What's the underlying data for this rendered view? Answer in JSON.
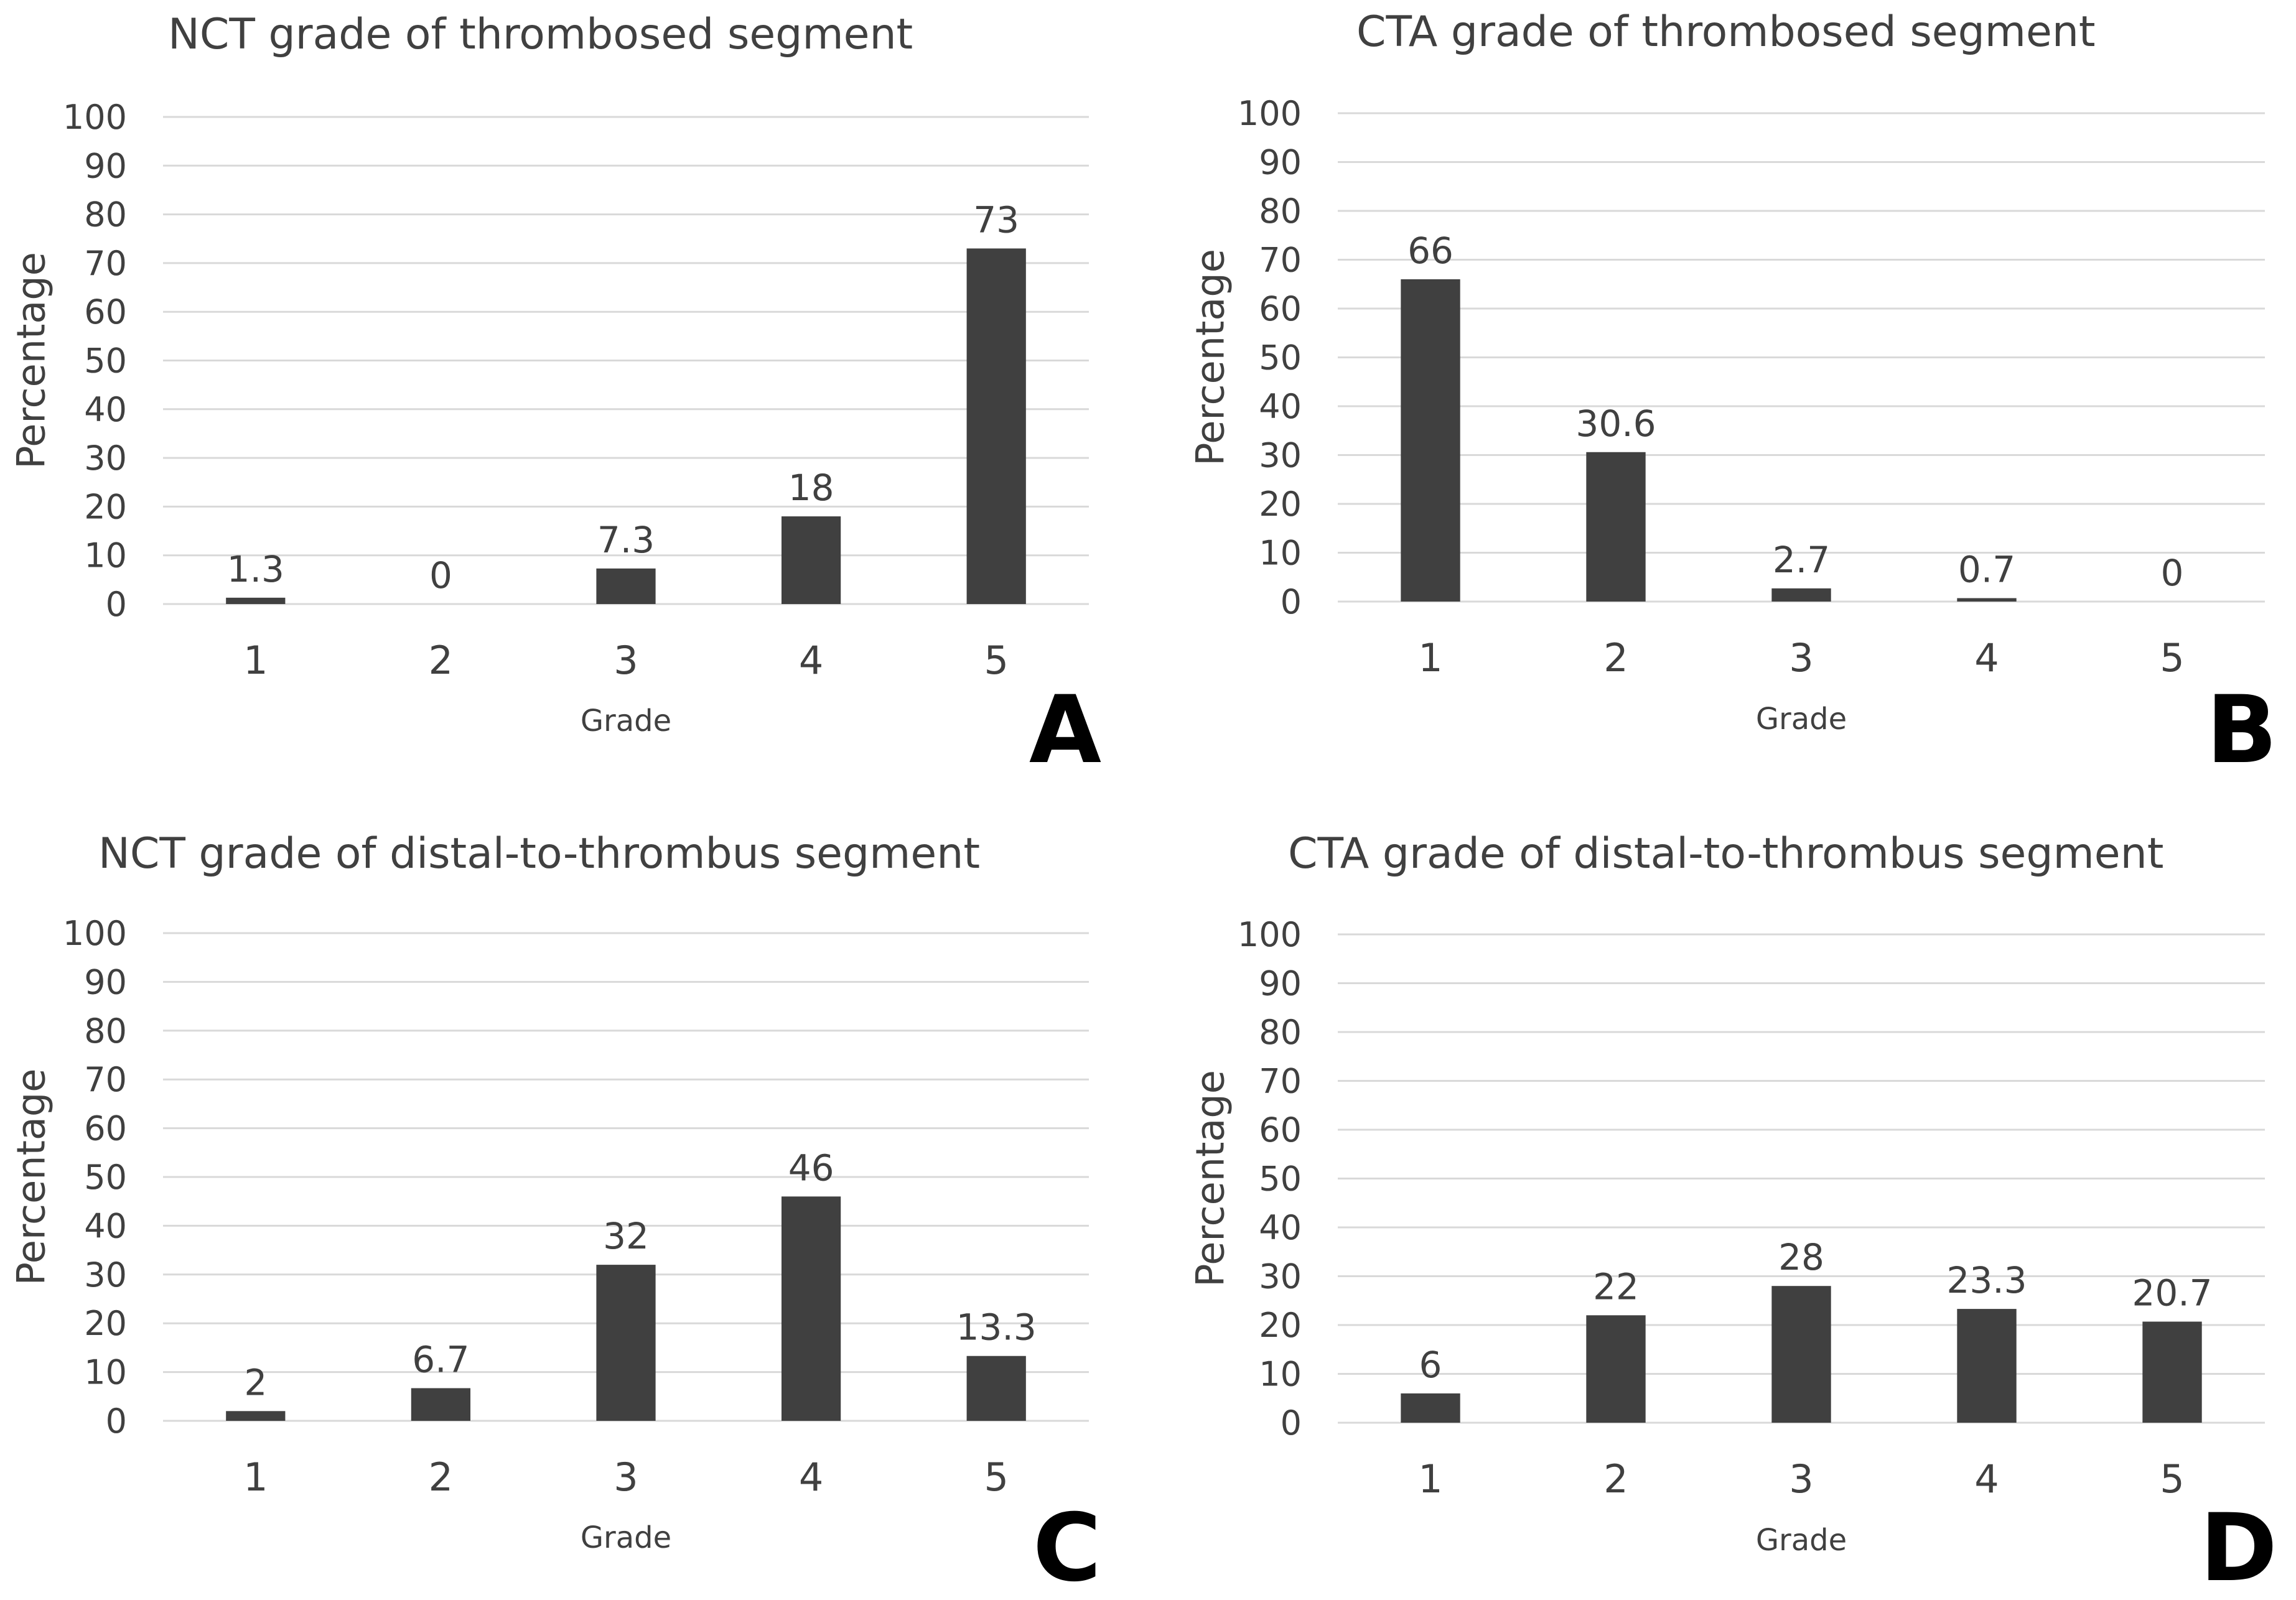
{
  "chart_data": [
    {
      "type": "bar",
      "panel": "A",
      "title": "NCT grade of thrombosed segment",
      "xlabel": "Grade",
      "ylabel": "Percentage",
      "categories": [
        "1",
        "2",
        "3",
        "4",
        "5"
      ],
      "values": [
        1.3,
        0,
        7.3,
        18,
        73
      ],
      "value_labels": [
        "1.3",
        "0",
        "7.3",
        "18",
        "73"
      ],
      "yticks": [
        "0",
        "10",
        "20",
        "30",
        "40",
        "50",
        "60",
        "70",
        "80",
        "90",
        "100"
      ],
      "ylim": [
        0,
        100
      ],
      "grid": true,
      "bar_color": "#404040"
    },
    {
      "type": "bar",
      "panel": "B",
      "title": "CTA grade of thrombosed segment",
      "xlabel": "Grade",
      "ylabel": "Percentage",
      "categories": [
        "1",
        "2",
        "3",
        "4",
        "5"
      ],
      "values": [
        66,
        30.6,
        2.7,
        0.7,
        0
      ],
      "value_labels": [
        "66",
        "30.6",
        "2.7",
        "0.7",
        "0"
      ],
      "yticks": [
        "0",
        "10",
        "20",
        "30",
        "40",
        "50",
        "60",
        "70",
        "80",
        "90",
        "100"
      ],
      "ylim": [
        0,
        100
      ],
      "grid": true,
      "bar_color": "#404040"
    },
    {
      "type": "bar",
      "panel": "C",
      "title": "NCT grade of distal-to-thrombus segment",
      "xlabel": "Grade",
      "ylabel": "Percentage",
      "categories": [
        "1",
        "2",
        "3",
        "4",
        "5"
      ],
      "values": [
        2,
        6.7,
        32,
        46,
        13.3
      ],
      "value_labels": [
        "2",
        "6.7",
        "32",
        "46",
        "13.3"
      ],
      "yticks": [
        "0",
        "10",
        "20",
        "30",
        "40",
        "50",
        "60",
        "70",
        "80",
        "90",
        "100"
      ],
      "ylim": [
        0,
        100
      ],
      "grid": true,
      "bar_color": "#404040"
    },
    {
      "type": "bar",
      "panel": "D",
      "title": "CTA grade of distal-to-thrombus segment",
      "xlabel": "Grade",
      "ylabel": "Percentage",
      "categories": [
        "1",
        "2",
        "3",
        "4",
        "5"
      ],
      "values": [
        6,
        22,
        28,
        23.3,
        20.7
      ],
      "value_labels": [
        "6",
        "22",
        "28",
        "23.3",
        "20.7"
      ],
      "yticks": [
        "0",
        "10",
        "20",
        "30",
        "40",
        "50",
        "60",
        "70",
        "80",
        "90",
        "100"
      ],
      "ylim": [
        0,
        100
      ],
      "grid": true,
      "bar_color": "#404040"
    }
  ]
}
